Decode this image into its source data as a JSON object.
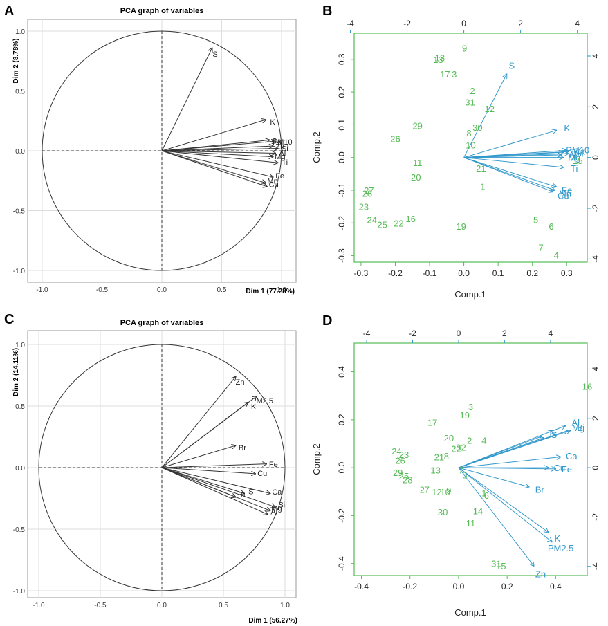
{
  "colors": {
    "observation": "#55bb55",
    "variable": "#3399cc",
    "frame_green": "#55bb55",
    "grid": "#dddddd",
    "arrow": "#333333"
  },
  "chart_data": [
    {
      "panel": "A",
      "type": "pca_correlation_circle",
      "title": "PCA graph of variables",
      "xlabel": "Dim 1 (77.28%)",
      "ylabel": "Dim 2 (8.78%)",
      "xlim": [
        -1.0,
        1.0
      ],
      "ylim": [
        -1.0,
        1.0
      ],
      "xticks": [
        -1.0,
        -0.5,
        0.0,
        0.5,
        1.0
      ],
      "yticks": [
        -1.0,
        -0.5,
        0.0,
        0.5,
        1.0
      ],
      "tick_labels": [
        "-1.0",
        "-0.5",
        "0.0",
        "0.5",
        "1.0"
      ],
      "variables": [
        {
          "name": "S",
          "x": 0.42,
          "y": 0.86
        },
        {
          "name": "K",
          "x": 0.87,
          "y": 0.26
        },
        {
          "name": "Ca",
          "x": 0.9,
          "y": 0.09
        },
        {
          "name": "PM10",
          "x": 0.95,
          "y": 0.08
        },
        {
          "name": "Zn",
          "x": 0.93,
          "y": 0.04
        },
        {
          "name": "Si",
          "x": 0.97,
          "y": 0.02
        },
        {
          "name": "Al",
          "x": 0.95,
          "y": -0.02
        },
        {
          "name": "Mg",
          "x": 0.93,
          "y": -0.05
        },
        {
          "name": "Ti",
          "x": 0.97,
          "y": -0.1
        },
        {
          "name": "Fe",
          "x": 0.93,
          "y": -0.22
        },
        {
          "name": "Mn",
          "x": 0.87,
          "y": -0.27
        },
        {
          "name": "Cu",
          "x": 0.88,
          "y": -0.3
        }
      ]
    },
    {
      "panel": "B",
      "type": "biplot",
      "xlabel": "Comp.1",
      "ylabel": "Comp.2",
      "xlim": [
        -0.32,
        0.36
      ],
      "ylim": [
        -0.32,
        0.38
      ],
      "xticks": [
        -0.3,
        -0.2,
        -0.1,
        0.0,
        0.1,
        0.2,
        0.3
      ],
      "xtick_labels": [
        "-0.3",
        "-0.2",
        "-0.1",
        "0.0",
        "0.1",
        "0.2",
        "0.3"
      ],
      "yticks": [
        -0.3,
        -0.2,
        -0.1,
        0.0,
        0.1,
        0.2,
        0.3
      ],
      "ytick_labels": [
        "-0.3",
        "-0.2",
        "-0.1",
        "0.0",
        "0.1",
        "0.2",
        "0.3"
      ],
      "top_ticks": [
        -4,
        -2,
        0,
        2,
        4
      ],
      "top_tick_labels": [
        "-4",
        "-2",
        "0",
        "2",
        "4"
      ],
      "right_ticks": [
        4,
        2,
        0,
        -2,
        -4
      ],
      "right_tick_labels": [
        "4",
        "2",
        "0",
        "-2",
        "-4"
      ],
      "observations": [
        {
          "label": "9",
          "x": 0.002,
          "y": 0.335
        },
        {
          "label": "18",
          "x": -0.07,
          "y": 0.305
        },
        {
          "label": "13",
          "x": -0.075,
          "y": 0.3
        },
        {
          "label": "17",
          "x": -0.055,
          "y": 0.255
        },
        {
          "label": "3",
          "x": -0.028,
          "y": 0.255
        },
        {
          "label": "2",
          "x": 0.025,
          "y": 0.205
        },
        {
          "label": "31",
          "x": 0.018,
          "y": 0.17
        },
        {
          "label": "12",
          "x": 0.075,
          "y": 0.15
        },
        {
          "label": "29",
          "x": -0.135,
          "y": 0.098
        },
        {
          "label": "30",
          "x": 0.04,
          "y": 0.092
        },
        {
          "label": "8",
          "x": 0.015,
          "y": 0.075
        },
        {
          "label": "26",
          "x": -0.2,
          "y": 0.058
        },
        {
          "label": "10",
          "x": 0.02,
          "y": 0.038
        },
        {
          "label": "11",
          "x": -0.135,
          "y": -0.015
        },
        {
          "label": "21",
          "x": 0.05,
          "y": -0.032
        },
        {
          "label": "20",
          "x": -0.14,
          "y": -0.06
        },
        {
          "label": "1",
          "x": 0.055,
          "y": -0.088
        },
        {
          "label": "27",
          "x": -0.277,
          "y": -0.1
        },
        {
          "label": "28",
          "x": -0.282,
          "y": -0.11
        },
        {
          "label": "23",
          "x": -0.292,
          "y": -0.15
        },
        {
          "label": "24",
          "x": -0.268,
          "y": -0.19
        },
        {
          "label": "25",
          "x": -0.238,
          "y": -0.205
        },
        {
          "label": "22",
          "x": -0.19,
          "y": -0.2
        },
        {
          "label": "16",
          "x": -0.155,
          "y": -0.187
        },
        {
          "label": "19",
          "x": -0.008,
          "y": -0.21
        },
        {
          "label": "5",
          "x": 0.21,
          "y": -0.19
        },
        {
          "label": "6",
          "x": 0.255,
          "y": -0.21
        },
        {
          "label": "7",
          "x": 0.225,
          "y": -0.275
        },
        {
          "label": "4",
          "x": 0.27,
          "y": -0.298
        }
      ],
      "variables": [
        {
          "name": "S",
          "x": 0.125,
          "y": 0.255
        },
        {
          "name": "K",
          "x": 0.27,
          "y": 0.083
        },
        {
          "name": "PM10",
          "x": 0.3,
          "y": 0.022
        },
        {
          "name": "Ca",
          "x": 0.305,
          "y": 0.018
        },
        {
          "name": "Zn",
          "x": 0.29,
          "y": 0.016
        },
        {
          "name": "Al",
          "x": 0.285,
          "y": 0.008
        },
        {
          "name": "Si",
          "x": 0.305,
          "y": 0.012
        },
        {
          "name": "Mg",
          "x": 0.29,
          "y": 0.0
        },
        {
          "name": "15",
          "x": 0.3,
          "y": -0.008
        },
        {
          "name": "Ti",
          "x": 0.29,
          "y": -0.03
        },
        {
          "name": "Fe",
          "x": 0.27,
          "y": -0.09
        },
        {
          "name": "Mn",
          "x": 0.265,
          "y": -0.1
        },
        {
          "name": "Cu",
          "x": 0.26,
          "y": -0.105
        }
      ]
    },
    {
      "panel": "C",
      "type": "pca_correlation_circle",
      "title": "PCA graph of variables",
      "xlabel": "Dim 1 (56.27%)",
      "ylabel": "Dim 2 (14.11%)",
      "xlim": [
        -1.0,
        1.0
      ],
      "ylim": [
        -1.0,
        1.0
      ],
      "xticks": [
        -1.0,
        -0.5,
        0.0,
        0.5,
        1.0
      ],
      "yticks": [
        -1.0,
        -0.5,
        0.0,
        0.5,
        1.0
      ],
      "tick_labels": [
        "-1.0",
        "-0.5",
        "0.0",
        "0.5",
        "1.0"
      ],
      "variables": [
        {
          "name": "Zn",
          "x": 0.6,
          "y": 0.74
        },
        {
          "name": "PM2.5",
          "x": 0.77,
          "y": 0.58
        },
        {
          "name": "K",
          "x": 0.7,
          "y": 0.53
        },
        {
          "name": "Br",
          "x": 0.6,
          "y": 0.18
        },
        {
          "name": "Fe",
          "x": 0.85,
          "y": 0.03
        },
        {
          "name": "Cu",
          "x": 0.76,
          "y": -0.05
        },
        {
          "name": "Ca",
          "x": 0.88,
          "y": -0.21
        },
        {
          "name": "Si",
          "x": 0.92,
          "y": -0.32
        },
        {
          "name": "S",
          "x": 0.67,
          "y": -0.21
        },
        {
          "name": "Ti",
          "x": 0.6,
          "y": -0.24
        },
        {
          "name": "Mg",
          "x": 0.88,
          "y": -0.35
        },
        {
          "name": "Al",
          "x": 0.86,
          "y": -0.38
        }
      ]
    },
    {
      "panel": "D",
      "type": "biplot",
      "xlabel": "Comp.1",
      "ylabel": "Comp.2",
      "xlim": [
        -0.43,
        0.53
      ],
      "ylim": [
        -0.45,
        0.52
      ],
      "xticks": [
        -0.4,
        -0.2,
        0.0,
        0.2,
        0.4
      ],
      "xtick_labels": [
        "-0.4",
        "-0.2",
        "0.0",
        "0.2",
        "0.4"
      ],
      "yticks": [
        -0.4,
        -0.2,
        0.0,
        0.2,
        0.4
      ],
      "ytick_labels": [
        "-0.4",
        "-0.2",
        "0.0",
        "0.2",
        "0.4"
      ],
      "top_ticks": [
        -4,
        -2,
        0,
        2,
        4
      ],
      "top_tick_labels": [
        "-4",
        "-2",
        "0",
        "2",
        "4"
      ],
      "right_ticks": [
        4,
        2,
        0,
        -2,
        -4
      ],
      "right_tick_labels": [
        "4",
        "2",
        "0",
        "-2",
        "-4"
      ],
      "observations": [
        {
          "label": "16",
          "x": 0.53,
          "y": 0.34
        },
        {
          "label": "3",
          "x": 0.05,
          "y": 0.255
        },
        {
          "label": "19",
          "x": 0.025,
          "y": 0.22
        },
        {
          "label": "17",
          "x": -0.108,
          "y": 0.19
        },
        {
          "label": "20",
          "x": -0.04,
          "y": 0.125
        },
        {
          "label": "2",
          "x": 0.045,
          "y": 0.115
        },
        {
          "label": "4",
          "x": 0.105,
          "y": 0.115
        },
        {
          "label": "32",
          "x": 0.01,
          "y": 0.085
        },
        {
          "label": "22",
          "x": -0.01,
          "y": 0.08
        },
        {
          "label": "24",
          "x": -0.255,
          "y": 0.07
        },
        {
          "label": "23",
          "x": -0.225,
          "y": 0.055
        },
        {
          "label": "21",
          "x": -0.08,
          "y": 0.045
        },
        {
          "label": "8",
          "x": -0.05,
          "y": 0.05
        },
        {
          "label": "26",
          "x": -0.24,
          "y": 0.03
        },
        {
          "label": "13",
          "x": -0.095,
          "y": -0.01
        },
        {
          "label": "29",
          "x": -0.25,
          "y": -0.02
        },
        {
          "label": "25",
          "x": -0.225,
          "y": -0.035
        },
        {
          "label": "28",
          "x": -0.21,
          "y": -0.05
        },
        {
          "label": "7",
          "x": 0.01,
          "y": -0.01
        },
        {
          "label": "5",
          "x": 0.025,
          "y": -0.03
        },
        {
          "label": "27",
          "x": -0.14,
          "y": -0.09
        },
        {
          "label": "12",
          "x": -0.09,
          "y": -0.1
        },
        {
          "label": "10",
          "x": -0.055,
          "y": -0.1
        },
        {
          "label": "9",
          "x": -0.04,
          "y": -0.095
        },
        {
          "label": "1",
          "x": 0.105,
          "y": -0.105
        },
        {
          "label": "6",
          "x": 0.115,
          "y": -0.115
        },
        {
          "label": "14",
          "x": 0.08,
          "y": -0.18
        },
        {
          "label": "30",
          "x": -0.065,
          "y": -0.185
        },
        {
          "label": "11",
          "x": 0.05,
          "y": -0.23
        },
        {
          "label": "31",
          "x": 0.155,
          "y": -0.4
        },
        {
          "label": "15",
          "x": 0.175,
          "y": -0.41
        }
      ],
      "variables": [
        {
          "name": "Al",
          "x": 0.44,
          "y": 0.175
        },
        {
          "name": "Mg",
          "x": 0.45,
          "y": 0.155
        },
        {
          "name": "Si",
          "x": 0.46,
          "y": 0.155
        },
        {
          "name": "Ti",
          "x": 0.34,
          "y": 0.13
        },
        {
          "name": "S",
          "x": 0.35,
          "y": 0.125
        },
        {
          "name": "Ca",
          "x": 0.42,
          "y": 0.045
        },
        {
          "name": "Cu",
          "x": 0.37,
          "y": 0.0
        },
        {
          "name": "Fe",
          "x": 0.4,
          "y": -0.005
        },
        {
          "name": "Br",
          "x": 0.29,
          "y": -0.08
        },
        {
          "name": "K",
          "x": 0.37,
          "y": -0.27
        },
        {
          "name": "PM2.5",
          "x": 0.385,
          "y": -0.31
        },
        {
          "name": "Zn",
          "x": 0.31,
          "y": -0.41
        }
      ]
    }
  ]
}
